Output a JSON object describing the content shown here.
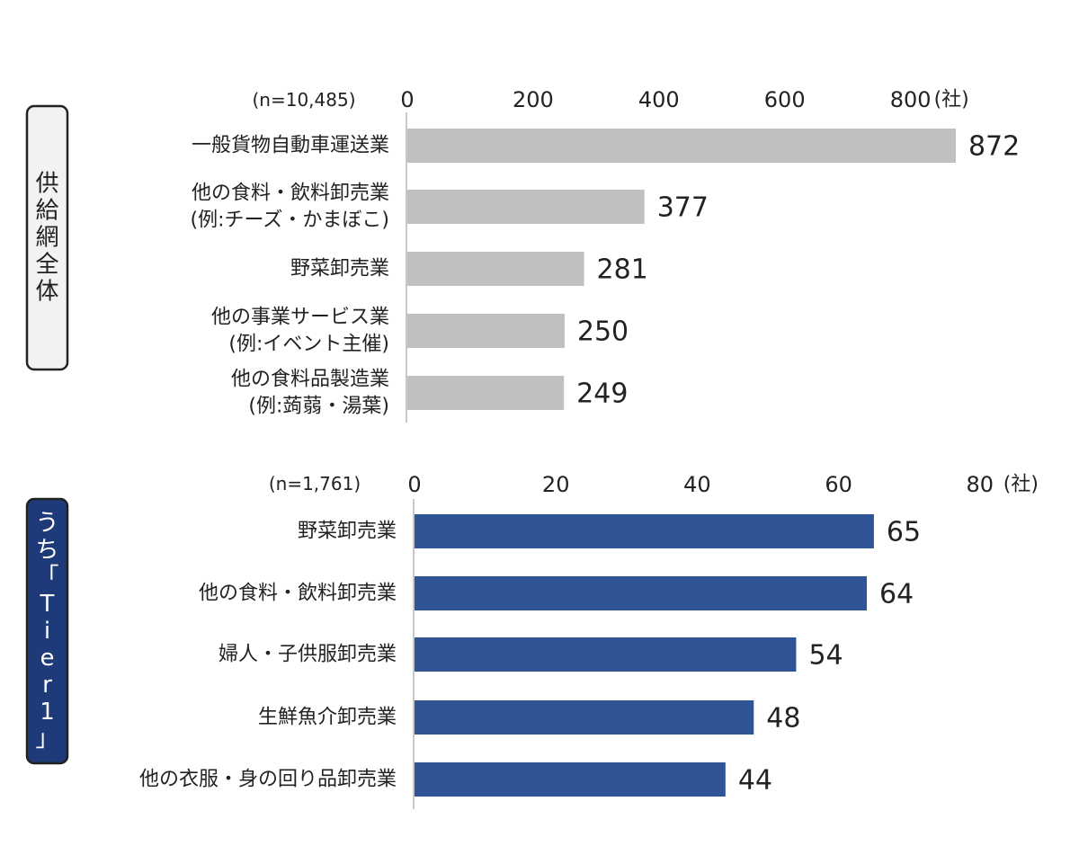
{
  "colors": {
    "top_bar": "#c0c0c0",
    "bottom_bar": "#2f5597",
    "top_badge_bg": "#f2f2f2",
    "bottom_badge_bg": "#1f3a78",
    "axis": "#c8c8c8"
  },
  "chart_data": [
    {
      "type": "bar",
      "orientation": "horizontal",
      "group_label": "供給網全体",
      "sample_label": "(n=10,485)",
      "unit_label": "(社)",
      "categories": [
        "一般貨物自動車運送業",
        "他の食料・飲料卸売業\n(例:チーズ・かまぼこ)",
        "野菜卸売業",
        "他の事業サービス業\n(例:イベント主催)",
        "他の食料品製造業\n(例:蒟蒻・湯葉)"
      ],
      "values": [
        872,
        377,
        281,
        250,
        249
      ],
      "xlim": [
        0,
        872
      ],
      "ticks": [
        0,
        200,
        400,
        600,
        800
      ],
      "grid": false
    },
    {
      "type": "bar",
      "orientation": "horizontal",
      "group_label": "うち「Tier1」",
      "sample_label": "(n=1,761)",
      "unit_label": "(社)",
      "categories": [
        "野菜卸売業",
        "他の食料・飲料卸売業",
        "婦人・子供服卸売業",
        "生鮮魚介卸売業",
        "他の衣服・身の回り品卸売業"
      ],
      "values": [
        65,
        64,
        54,
        48,
        44
      ],
      "xlim": [
        0,
        65
      ],
      "ticks": [
        0,
        20,
        40,
        60,
        80
      ],
      "grid": false
    }
  ]
}
